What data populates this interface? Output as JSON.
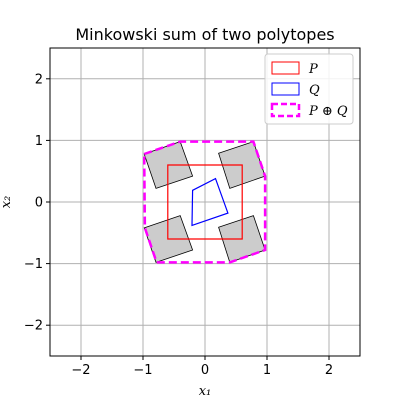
{
  "chart_data": {
    "type": "scatter",
    "title": "Minkowski sum of two polytopes",
    "xlabel": "x₁",
    "ylabel": "x₂",
    "xlim": [
      -2.5,
      2.5
    ],
    "ylim": [
      -2.5,
      2.5
    ],
    "xticks": [
      -2,
      -1,
      0,
      1,
      2
    ],
    "yticks": [
      -2,
      -1,
      0,
      1,
      2
    ],
    "xtick_labels": [
      "−2",
      "−1",
      "0",
      "1",
      "2"
    ],
    "ytick_labels": [
      "−2",
      "−1",
      "0",
      "1",
      "2"
    ],
    "grid": true,
    "legend_placement": "top-right",
    "colors": {
      "P": "#ff0000",
      "Q": "#0000ff",
      "PQ": "#ff00ff",
      "shaded_fill": "#cccccc",
      "grid": "#b0b0b0"
    },
    "series": [
      {
        "name": "P",
        "style": "solid",
        "vertices": [
          [
            -0.6,
            -0.6
          ],
          [
            0.6,
            -0.6
          ],
          [
            0.6,
            0.6
          ],
          [
            -0.6,
            0.6
          ]
        ]
      },
      {
        "name": "Q",
        "style": "solid",
        "vertices": [
          [
            -0.2,
            0.19
          ],
          [
            0.17,
            0.38
          ],
          [
            0.37,
            -0.18
          ],
          [
            -0.21,
            -0.38
          ]
        ]
      },
      {
        "name": "P ⊕ Q",
        "style": "dashed",
        "vertices": [
          [
            -0.98,
            0.78
          ],
          [
            -0.4,
            0.98
          ],
          [
            0.78,
            0.98
          ],
          [
            0.97,
            0.42
          ],
          [
            0.97,
            -0.78
          ],
          [
            0.4,
            -0.98
          ],
          [
            -0.78,
            -0.98
          ],
          [
            -0.97,
            -0.42
          ]
        ]
      }
    ],
    "shaded_squares": [
      [
        [
          -0.98,
          0.78
        ],
        [
          -0.4,
          0.98
        ],
        [
          -0.2,
          0.42
        ],
        [
          -0.79,
          0.22
        ]
      ],
      [
        [
          0.22,
          0.79
        ],
        [
          0.78,
          0.98
        ],
        [
          0.97,
          0.42
        ],
        [
          0.4,
          0.22
        ]
      ],
      [
        [
          -0.98,
          -0.42
        ],
        [
          -0.4,
          -0.22
        ],
        [
          -0.2,
          -0.78
        ],
        [
          -0.79,
          -0.98
        ]
      ],
      [
        [
          0.22,
          -0.41
        ],
        [
          0.78,
          -0.22
        ],
        [
          0.97,
          -0.78
        ],
        [
          0.4,
          -0.98
        ]
      ]
    ],
    "legend": [
      "P",
      "Q",
      "P ⊕ Q"
    ]
  }
}
